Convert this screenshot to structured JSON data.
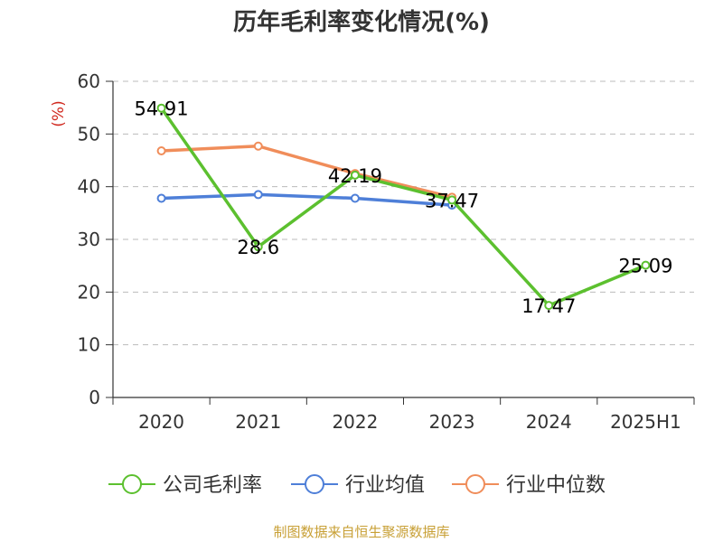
{
  "chart_data": {
    "type": "line",
    "title": "历年毛利率变化情况(%)",
    "ylabel": "(%)",
    "xlabel": "",
    "categories": [
      "2020",
      "2021",
      "2022",
      "2023",
      "2024",
      "2025H1"
    ],
    "ylim": [
      0,
      60
    ],
    "yticks": [
      0,
      10,
      20,
      30,
      40,
      50,
      60
    ],
    "grid": true,
    "legend_position": "bottom",
    "series": [
      {
        "name": "公司毛利率",
        "color": "#5cc02f",
        "values": [
          54.91,
          28.6,
          42.19,
          37.47,
          17.47,
          25.09
        ],
        "labels": [
          "54.91",
          "28.6",
          "42.19",
          "37.47",
          "17.47",
          "25.09"
        ]
      },
      {
        "name": "行业均值",
        "color": "#4e7fd8",
        "values": [
          37.8,
          38.5,
          37.8,
          36.5,
          null,
          null
        ]
      },
      {
        "name": "行业中位数",
        "color": "#f08d5a",
        "values": [
          46.8,
          47.7,
          42.5,
          38.0,
          null,
          null
        ]
      }
    ],
    "axis_color": "#333333",
    "ylabel_color": "#d0281e",
    "grid_color": "#bbbbbb"
  },
  "source": "制图数据来自恒生聚源数据库"
}
